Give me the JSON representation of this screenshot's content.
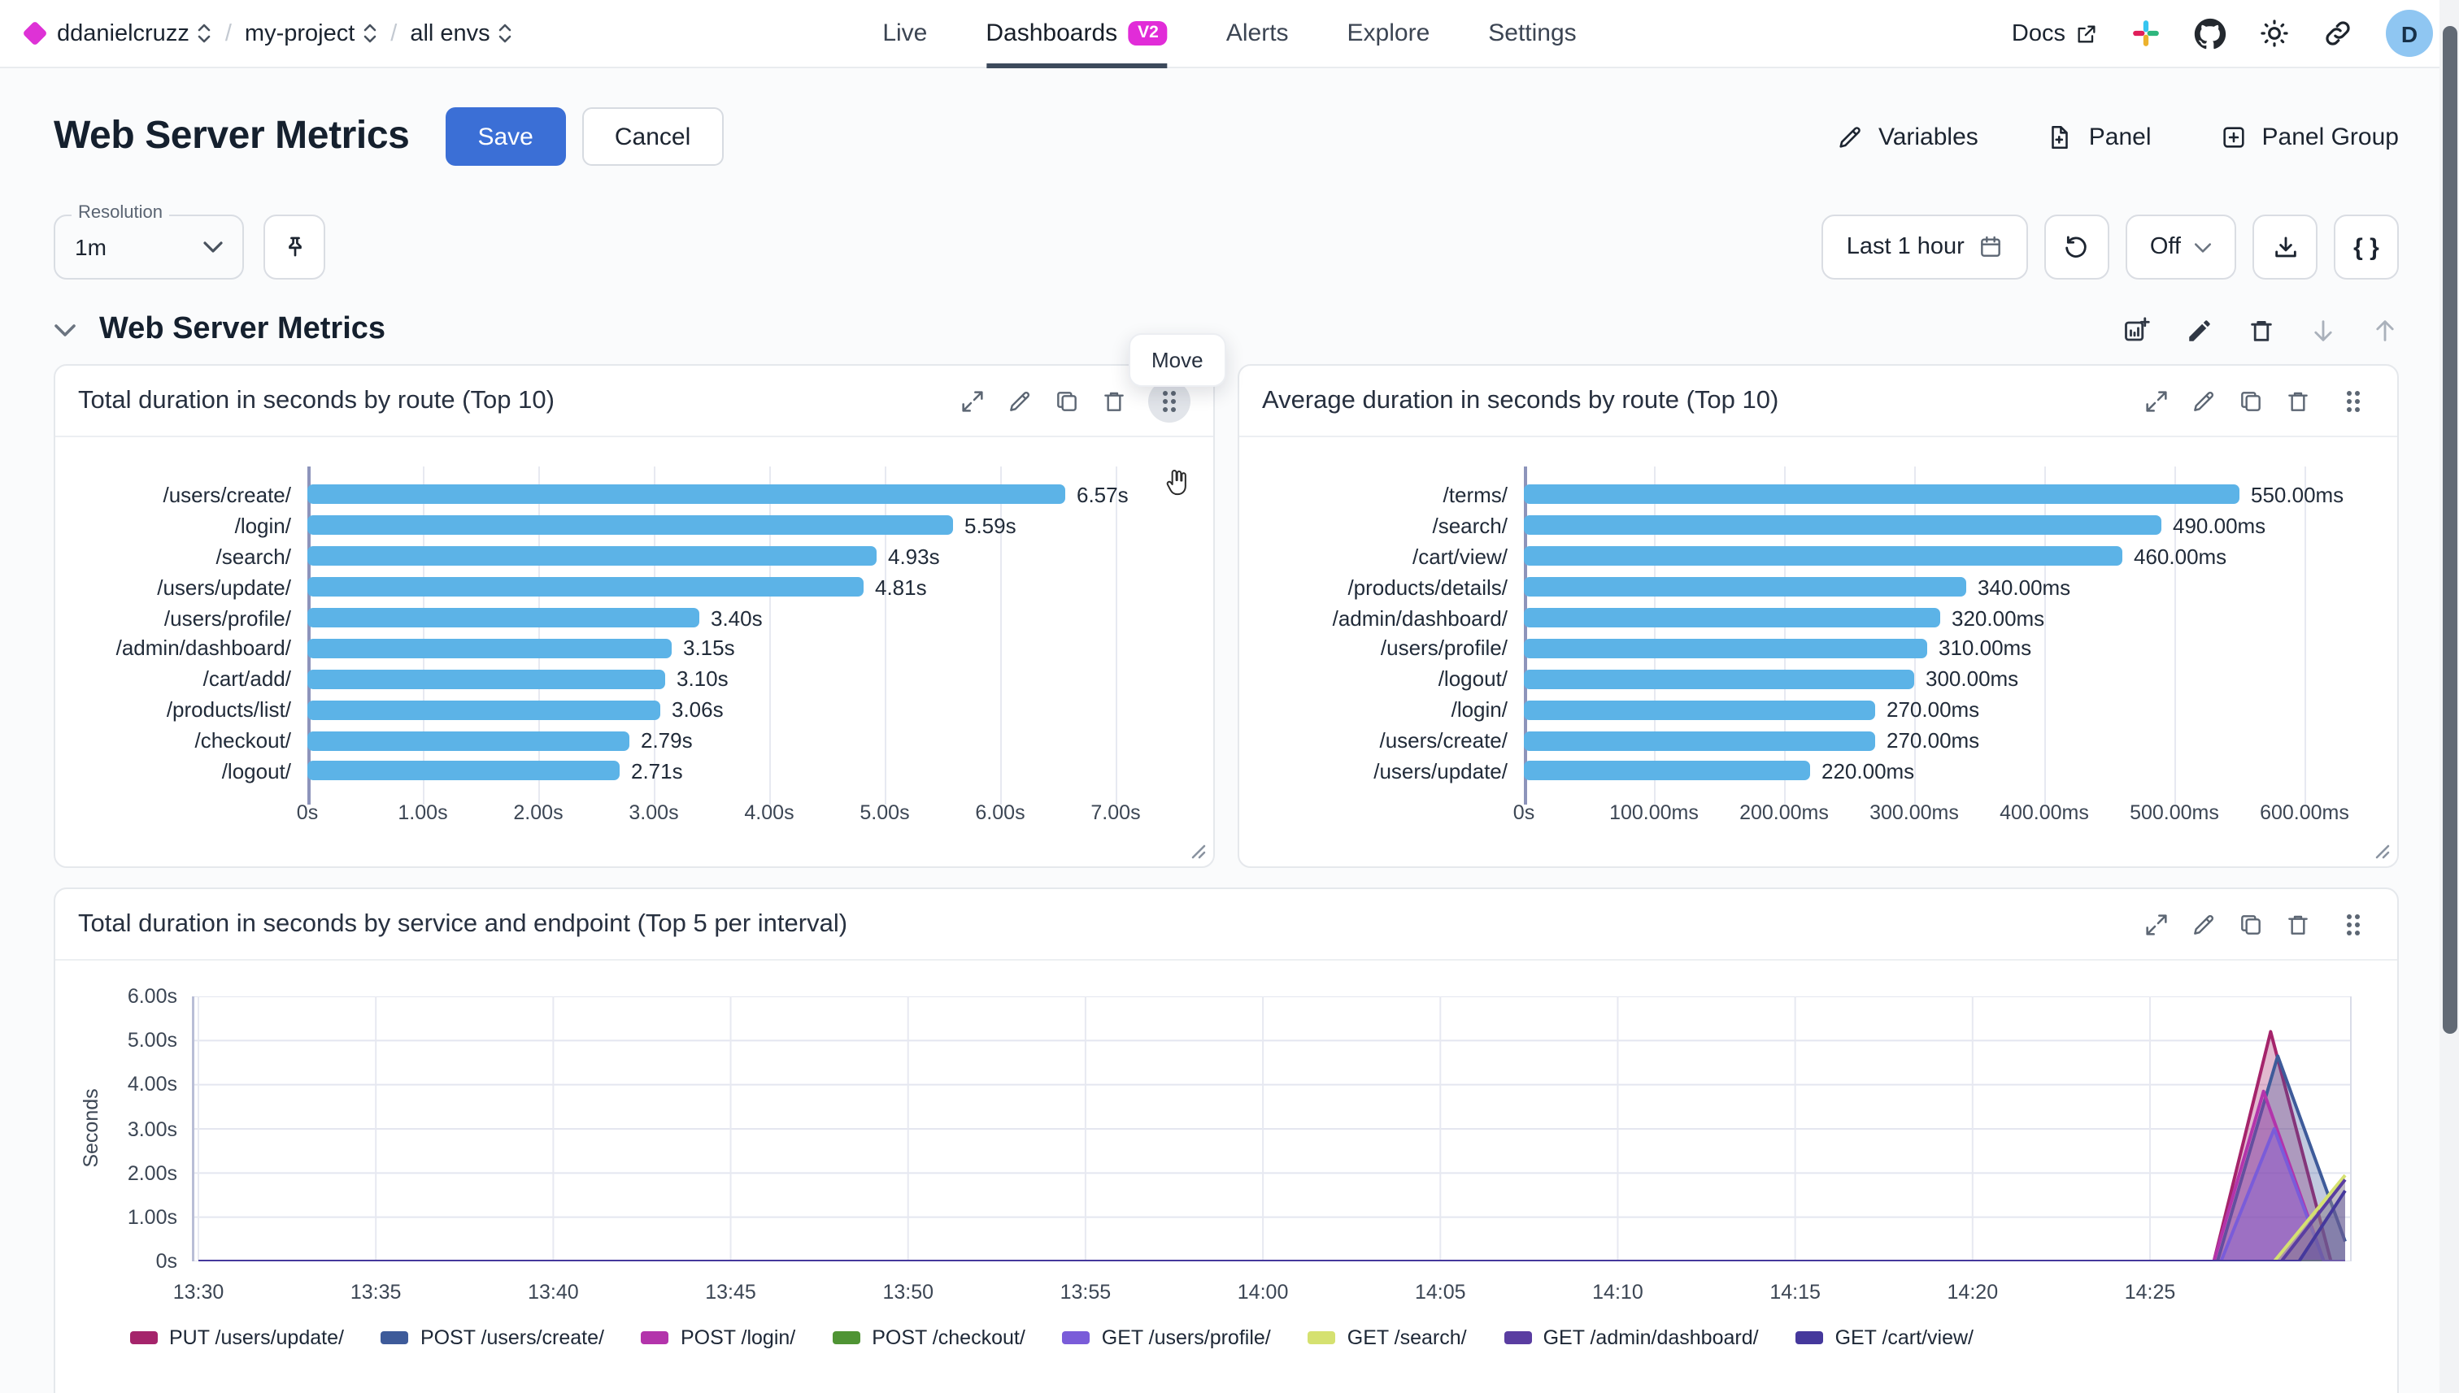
{
  "topbar": {
    "breadcrumb": {
      "org": "ddanielcruzz",
      "project": "my-project",
      "env": "all envs"
    },
    "nav": [
      {
        "label": "Live"
      },
      {
        "label": "Dashboards",
        "badge": "V2",
        "active": true
      },
      {
        "label": "Alerts"
      },
      {
        "label": "Explore"
      },
      {
        "label": "Settings"
      }
    ],
    "docs_label": "Docs",
    "avatar_initial": "D"
  },
  "header": {
    "title": "Web Server Metrics",
    "save_label": "Save",
    "cancel_label": "Cancel",
    "actions": {
      "variables": "Variables",
      "panel": "Panel",
      "panel_group": "Panel Group"
    }
  },
  "controls": {
    "resolution_label": "Resolution",
    "resolution_value": "1m",
    "time_range": "Last 1 hour",
    "refresh_interval": "Off",
    "code_button": "{ }"
  },
  "section": {
    "title": "Web Server Metrics",
    "move_tooltip": "Move"
  },
  "colors": {
    "accent_magenta": "#de32d6",
    "save_blue": "#3b6fd6",
    "bar_blue": "#5cb3e7",
    "active_tab_underline": "#3d4a5c"
  },
  "chart_data": [
    {
      "type": "bar",
      "orientation": "horizontal",
      "title": "Total duration in seconds by route (Top 10)",
      "categories": [
        "/users/create/",
        "/login/",
        "/search/",
        "/users/update/",
        "/users/profile/",
        "/admin/dashboard/",
        "/cart/add/",
        "/products/list/",
        "/checkout/",
        "/logout/"
      ],
      "values": [
        6.57,
        5.59,
        4.93,
        4.81,
        3.4,
        3.15,
        3.1,
        3.06,
        2.79,
        2.71
      ],
      "value_labels": [
        "6.57s",
        "5.59s",
        "4.93s",
        "4.81s",
        "3.40s",
        "3.15s",
        "3.10s",
        "3.06s",
        "2.79s",
        "2.71s"
      ],
      "x_ticks": [
        "0s",
        "1.00s",
        "2.00s",
        "3.00s",
        "4.00s",
        "5.00s",
        "6.00s",
        "7.00s"
      ],
      "x_tick_values": [
        0,
        1,
        2,
        3,
        4,
        5,
        6,
        7
      ],
      "xlim": [
        0,
        7.35
      ],
      "bar_color": "#5cb3e7",
      "grid": true
    },
    {
      "type": "bar",
      "orientation": "horizontal",
      "title": "Average duration in seconds by route (Top 10)",
      "categories": [
        "/terms/",
        "/search/",
        "/cart/view/",
        "/products/details/",
        "/admin/dashboard/",
        "/users/profile/",
        "/logout/",
        "/login/",
        "/users/create/",
        "/users/update/"
      ],
      "values": [
        550,
        490,
        460,
        340,
        320,
        310,
        300,
        270,
        270,
        220
      ],
      "value_labels": [
        "550.00ms",
        "490.00ms",
        "460.00ms",
        "340.00ms",
        "320.00ms",
        "310.00ms",
        "300.00ms",
        "270.00ms",
        "270.00ms",
        "220.00ms"
      ],
      "x_ticks": [
        "0s",
        "100.00ms",
        "200.00ms",
        "300.00ms",
        "400.00ms",
        "500.00ms",
        "600.00ms"
      ],
      "x_tick_values": [
        0,
        100,
        200,
        300,
        400,
        500,
        600
      ],
      "xlim": [
        0,
        630
      ],
      "bar_color": "#5cb3e7",
      "grid": true
    },
    {
      "type": "area",
      "title": "Total duration in seconds by service and endpoint (Top 5 per interval)",
      "ylabel": "Seconds",
      "y_ticks": [
        "0s",
        "1.00s",
        "2.00s",
        "3.00s",
        "4.00s",
        "5.00s",
        "6.00s"
      ],
      "y_tick_values": [
        0,
        1,
        2,
        3,
        4,
        5,
        6
      ],
      "ylim": [
        0,
        6
      ],
      "x_ticks": [
        "13:30",
        "13:35",
        "13:40",
        "13:45",
        "13:50",
        "13:55",
        "14:00",
        "14:05",
        "14:10",
        "14:15",
        "14:20",
        "14:25"
      ],
      "x_tick_minutes": [
        0,
        5,
        10,
        15,
        20,
        25,
        30,
        35,
        40,
        45,
        50,
        55
      ],
      "x_domain_minutes": [
        0,
        60.5
      ],
      "grid": true,
      "legend_position": "bottom",
      "series": [
        {
          "name": "PUT /users/update/",
          "color": "#a5246b",
          "points": [
            [
              0,
              0
            ],
            [
              56.8,
              0
            ],
            [
              58.4,
              5.2
            ],
            [
              60.1,
              0
            ],
            [
              60.5,
              0
            ]
          ]
        },
        {
          "name": "POST /users/create/",
          "color": "#3e5b9a",
          "points": [
            [
              0,
              0
            ],
            [
              56.9,
              0
            ],
            [
              58.6,
              4.65
            ],
            [
              60.5,
              0.45
            ]
          ]
        },
        {
          "name": "POST /login/",
          "color": "#b334ab",
          "points": [
            [
              0,
              0
            ],
            [
              56.8,
              0
            ],
            [
              58.2,
              3.85
            ],
            [
              59.9,
              0
            ],
            [
              60.5,
              0
            ]
          ]
        },
        {
          "name": "POST /checkout/",
          "color": "#4f9434",
          "points": [
            [
              0,
              0
            ],
            [
              60.5,
              0
            ]
          ]
        },
        {
          "name": "GET /users/profile/",
          "color": "#7a5cd9",
          "points": [
            [
              0,
              0
            ],
            [
              57.0,
              0
            ],
            [
              58.5,
              3.0
            ],
            [
              59.9,
              0
            ],
            [
              60.5,
              0
            ]
          ]
        },
        {
          "name": "GET /search/",
          "color": "#d5e170",
          "points": [
            [
              0,
              0
            ],
            [
              58.5,
              0
            ],
            [
              60.5,
              1.95
            ]
          ]
        },
        {
          "name": "GET /admin/dashboard/",
          "color": "#5a3da1",
          "points": [
            [
              0,
              0
            ],
            [
              58.7,
              0
            ],
            [
              60.5,
              1.85
            ]
          ]
        },
        {
          "name": "GET /cart/view/",
          "color": "#45389c",
          "points": [
            [
              0,
              0
            ],
            [
              59.2,
              0
            ],
            [
              60.5,
              1.6
            ]
          ]
        }
      ]
    }
  ]
}
